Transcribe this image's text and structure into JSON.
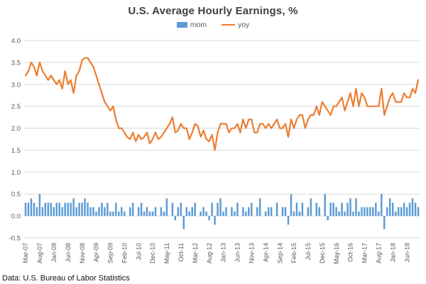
{
  "title": "U.S. Average Hourly Earnings,  %",
  "footer": "Data: U.S. Bureau of Labor Statistics",
  "legend": [
    {
      "label": "mom",
      "color": "#5B9BD5",
      "swatch": "bar-swatch-icon"
    },
    {
      "label": "yoy",
      "color": "#ED7D31",
      "swatch": "line-swatch-icon"
    }
  ],
  "chart_data": {
    "type": "bar",
    "title": "U.S. Average Hourly Earnings,  %",
    "xlabel": "",
    "ylabel": "",
    "ylim": [
      -0.5,
      4.0
    ],
    "ytick_step": 0.5,
    "x_tick_step": 5,
    "grid": true,
    "legend_position": "top",
    "grid_color": "#D9D9D9",
    "axis_color": "#595959",
    "x": [
      "Mar-07",
      "Apr-07",
      "May-07",
      "Jun-07",
      "Jul-07",
      "Aug-07",
      "Sep-07",
      "Oct-07",
      "Nov-07",
      "Dec-07",
      "Jan-08",
      "Feb-08",
      "Mar-08",
      "Apr-08",
      "May-08",
      "Jun-08",
      "Jul-08",
      "Aug-08",
      "Sep-08",
      "Oct-08",
      "Nov-08",
      "Dec-08",
      "Jan-09",
      "Feb-09",
      "Mar-09",
      "Apr-09",
      "May-09",
      "Jun-09",
      "Jul-09",
      "Aug-09",
      "Sep-09",
      "Oct-09",
      "Nov-09",
      "Dec-09",
      "Jan-10",
      "Feb-10",
      "Mar-10",
      "Apr-10",
      "May-10",
      "Jun-10",
      "Jul-10",
      "Aug-10",
      "Sep-10",
      "Oct-10",
      "Nov-10",
      "Dec-10",
      "Jan-11",
      "Feb-11",
      "Mar-11",
      "Apr-11",
      "May-11",
      "Jun-11",
      "Jul-11",
      "Aug-11",
      "Sep-11",
      "Oct-11",
      "Nov-11",
      "Dec-11",
      "Jan-12",
      "Feb-12",
      "Mar-12",
      "Apr-12",
      "May-12",
      "Jun-12",
      "Jul-12",
      "Aug-12",
      "Sep-12",
      "Oct-12",
      "Nov-12",
      "Dec-12",
      "Jan-13",
      "Feb-13",
      "Mar-13",
      "Apr-13",
      "May-13",
      "Jun-13",
      "Jul-13",
      "Aug-13",
      "Sep-13",
      "Oct-13",
      "Nov-13",
      "Dec-13",
      "Jan-14",
      "Feb-14",
      "Mar-14",
      "Apr-14",
      "May-14",
      "Jun-14",
      "Jul-14",
      "Aug-14",
      "Sep-14",
      "Oct-14",
      "Nov-14",
      "Dec-14",
      "Jan-15",
      "Feb-15",
      "Mar-15",
      "Apr-15",
      "May-15",
      "Jun-15",
      "Jul-15",
      "Aug-15",
      "Sep-15",
      "Oct-15",
      "Nov-15",
      "Dec-15",
      "Jan-16",
      "Feb-16",
      "Mar-16",
      "Apr-16",
      "May-16",
      "Jun-16",
      "Jul-16",
      "Aug-16",
      "Sep-16",
      "Oct-16",
      "Nov-16",
      "Dec-16",
      "Jan-17",
      "Feb-17",
      "Mar-17",
      "Apr-17",
      "May-17",
      "Jun-17",
      "Jul-17",
      "Aug-17",
      "Sep-17",
      "Oct-17",
      "Nov-17",
      "Dec-17",
      "Jan-18",
      "Feb-18",
      "Mar-18",
      "Apr-18",
      "May-18",
      "Jun-18",
      "Jul-18",
      "Aug-18",
      "Sep-18",
      "Oct-18"
    ],
    "series": [
      {
        "name": "mom",
        "type": "bar",
        "color": "#5B9BD5",
        "values": [
          0.3,
          0.3,
          0.4,
          0.3,
          0.2,
          0.5,
          0.2,
          0.3,
          0.3,
          0.3,
          0.2,
          0.3,
          0.3,
          0.2,
          0.3,
          0.3,
          0.3,
          0.4,
          0.2,
          0.3,
          0.3,
          0.4,
          0.3,
          0.2,
          0.2,
          0.1,
          0.2,
          0.3,
          0.2,
          0.3,
          0.1,
          0.1,
          0.3,
          0.1,
          0.2,
          0.1,
          0.0,
          0.2,
          0.3,
          0.0,
          0.2,
          0.3,
          0.1,
          0.2,
          0.1,
          0.1,
          0.2,
          0.0,
          0.2,
          0.1,
          0.4,
          0.0,
          0.3,
          -0.1,
          0.2,
          0.3,
          -0.3,
          0.2,
          0.1,
          0.2,
          0.3,
          0.0,
          0.1,
          0.2,
          0.1,
          -0.1,
          0.3,
          -0.2,
          0.3,
          0.4,
          0.1,
          0.2,
          0.0,
          0.2,
          0.1,
          0.3,
          0.0,
          0.2,
          0.1,
          0.2,
          0.3,
          0.0,
          0.2,
          0.4,
          0.0,
          0.1,
          0.2,
          0.2,
          0.0,
          0.3,
          0.0,
          0.2,
          0.2,
          -0.2,
          0.5,
          0.1,
          0.3,
          0.1,
          0.3,
          0.0,
          0.2,
          0.4,
          0.0,
          0.3,
          0.2,
          0.0,
          0.5,
          -0.1,
          0.3,
          0.3,
          0.2,
          0.1,
          0.3,
          0.1,
          0.3,
          0.4,
          0.1,
          0.4,
          0.1,
          0.2,
          0.2,
          0.2,
          0.2,
          0.2,
          0.3,
          0.1,
          0.5,
          -0.3,
          0.2,
          0.4,
          0.3,
          0.1,
          0.2,
          0.2,
          0.3,
          0.2,
          0.3,
          0.4,
          0.3,
          0.2
        ]
      },
      {
        "name": "yoy",
        "type": "line",
        "color": "#ED7D31",
        "values": [
          3.2,
          3.3,
          3.5,
          3.4,
          3.2,
          3.5,
          3.3,
          3.2,
          3.1,
          3.2,
          3.1,
          3.0,
          3.1,
          2.9,
          3.3,
          3.0,
          3.1,
          2.8,
          3.2,
          3.3,
          3.55,
          3.6,
          3.6,
          3.5,
          3.4,
          3.2,
          3.0,
          2.8,
          2.6,
          2.5,
          2.4,
          2.5,
          2.2,
          2.0,
          2.0,
          1.9,
          1.8,
          1.75,
          1.9,
          1.7,
          1.85,
          1.75,
          1.8,
          1.9,
          1.65,
          1.75,
          1.9,
          1.75,
          1.8,
          1.9,
          2.0,
          2.1,
          2.25,
          1.9,
          1.95,
          2.1,
          2.0,
          2.0,
          1.75,
          1.9,
          2.1,
          2.05,
          1.8,
          1.95,
          1.75,
          1.7,
          1.85,
          1.5,
          1.9,
          2.1,
          2.1,
          2.1,
          1.9,
          2.0,
          2.0,
          2.1,
          1.9,
          2.2,
          2.0,
          2.2,
          2.2,
          1.9,
          1.9,
          2.1,
          2.1,
          2.0,
          2.1,
          2.0,
          2.1,
          2.2,
          2.0,
          2.0,
          2.1,
          1.8,
          2.2,
          2.0,
          2.2,
          2.3,
          2.3,
          2.0,
          2.2,
          2.3,
          2.3,
          2.5,
          2.3,
          2.6,
          2.5,
          2.4,
          2.3,
          2.5,
          2.5,
          2.6,
          2.7,
          2.4,
          2.6,
          2.8,
          2.5,
          2.9,
          2.5,
          2.8,
          2.7,
          2.5,
          2.5,
          2.5,
          2.5,
          2.5,
          2.9,
          2.3,
          2.5,
          2.7,
          2.8,
          2.6,
          2.6,
          2.6,
          2.8,
          2.7,
          2.7,
          2.9,
          2.8,
          3.1
        ]
      }
    ]
  }
}
